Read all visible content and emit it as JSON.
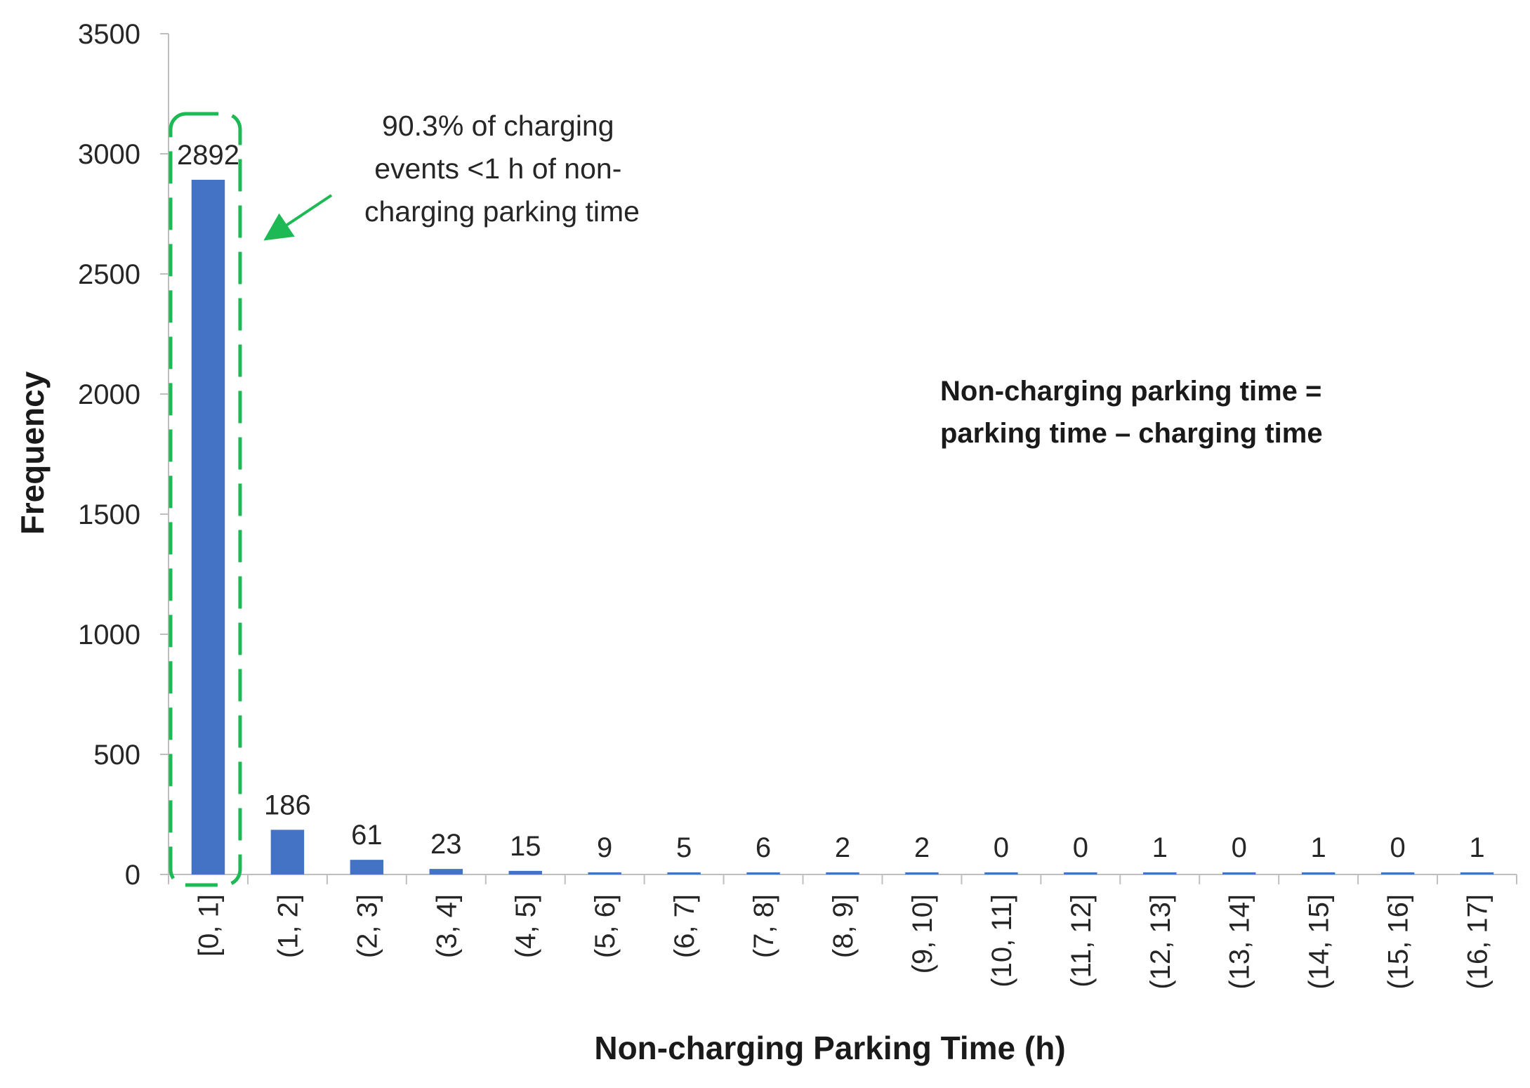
{
  "chart_data": {
    "type": "bar",
    "categories": [
      "[0, 1]",
      "(1, 2]",
      "(2, 3]",
      "(3, 4]",
      "(4, 5]",
      "(5, 6]",
      "(6, 7]",
      "(7, 8]",
      "(8, 9]",
      "(9, 10]",
      "(10, 11]",
      "(11, 12]",
      "(12, 13]",
      "(13, 14]",
      "(14, 15]",
      "(15, 16]",
      "(16, 17]"
    ],
    "values": [
      2892,
      186,
      61,
      23,
      15,
      9,
      5,
      6,
      2,
      2,
      0,
      0,
      1,
      0,
      1,
      0,
      1
    ],
    "data_labels": [
      "2892",
      "186",
      "61",
      "23",
      "15",
      "9",
      "5",
      "6",
      "2",
      "2",
      "0",
      "0",
      "1",
      "0",
      "1",
      "0",
      "1"
    ],
    "xlabel": "Non-charging Parking Time (h)",
    "ylabel": "Frequency",
    "ylim": [
      0,
      3500
    ],
    "yticks": [
      0,
      500,
      1000,
      1500,
      2000,
      2500,
      3000,
      3500
    ],
    "ytick_labels": [
      "0",
      "500",
      "1000",
      "1500",
      "2000",
      "2500",
      "3000",
      "3500"
    ],
    "grid": false,
    "legend": "none",
    "colors": {
      "bar": "#4472C4",
      "highlight": "#1DB954",
      "axis": "#BFBFBF",
      "text": "#262626"
    },
    "annotations": {
      "highlight_category": "[0, 1]",
      "callout_lines": [
        "90.3%  of charging",
        "events <1 h of non-",
        "charging parking time"
      ],
      "note_lines": [
        "Non-charging parking time =",
        "parking time – charging time"
      ]
    }
  }
}
